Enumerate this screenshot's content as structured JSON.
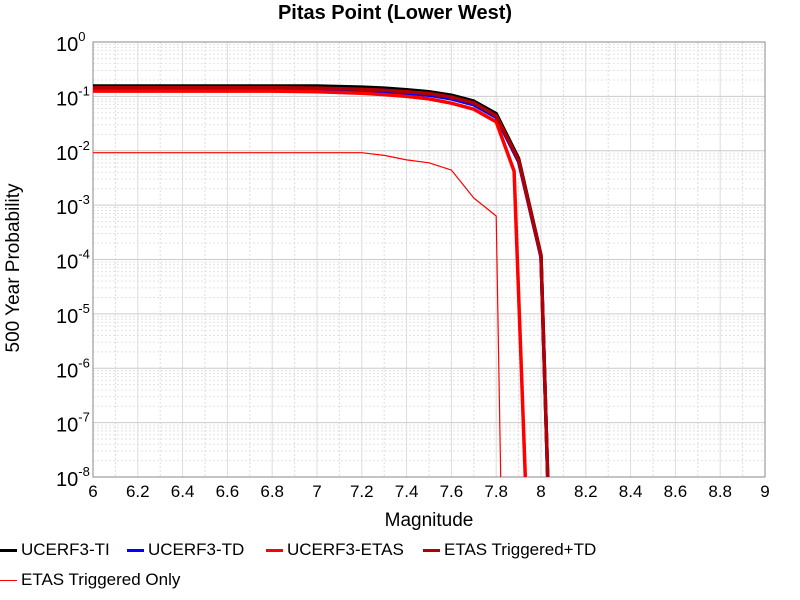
{
  "chart_data": {
    "type": "line",
    "title": "Pitas Point (Lower West)",
    "xlabel": "Magnitude",
    "ylabel": "500 Year Probability",
    "xlim": [
      6,
      9
    ],
    "ylim": [
      1e-08,
      1
    ],
    "yscale": "log",
    "grid": true,
    "legend_position": "bottom",
    "x_ticks": [
      "6",
      "6.2",
      "6.4",
      "6.6",
      "6.8",
      "7",
      "7.2",
      "7.4",
      "7.6",
      "7.8",
      "8",
      "8.2",
      "8.4",
      "8.6",
      "8.8",
      "9"
    ],
    "y_ticks": [
      {
        "base": "10",
        "exp": "0",
        "value": 1
      },
      {
        "base": "10",
        "exp": "-1",
        "value": 0.1
      },
      {
        "base": "10",
        "exp": "-2",
        "value": 0.01
      },
      {
        "base": "10",
        "exp": "-3",
        "value": 0.001
      },
      {
        "base": "10",
        "exp": "-4",
        "value": 0.0001
      },
      {
        "base": "10",
        "exp": "-5",
        "value": 1e-05
      },
      {
        "base": "10",
        "exp": "-6",
        "value": 1e-06
      },
      {
        "base": "10",
        "exp": "-7",
        "value": 1e-07
      },
      {
        "base": "10",
        "exp": "-8",
        "value": 1e-08
      }
    ],
    "series": [
      {
        "name": "UCERF3-TI",
        "color": "#000000",
        "width": 3.5,
        "points": [
          [
            6.0,
            0.155
          ],
          [
            6.2,
            0.155
          ],
          [
            6.4,
            0.155
          ],
          [
            6.6,
            0.155
          ],
          [
            6.8,
            0.155
          ],
          [
            7.0,
            0.155
          ],
          [
            7.2,
            0.148
          ],
          [
            7.3,
            0.142
          ],
          [
            7.4,
            0.132
          ],
          [
            7.5,
            0.122
          ],
          [
            7.6,
            0.105
          ],
          [
            7.7,
            0.082
          ],
          [
            7.8,
            0.048
          ],
          [
            7.9,
            0.0072
          ],
          [
            8.0,
            0.00012
          ],
          [
            8.03,
            1e-08
          ]
        ]
      },
      {
        "name": "UCERF3-TD",
        "color": "#0000ff",
        "width": 3.5,
        "points": [
          [
            6.0,
            0.135
          ],
          [
            6.2,
            0.135
          ],
          [
            6.4,
            0.135
          ],
          [
            6.6,
            0.135
          ],
          [
            6.8,
            0.135
          ],
          [
            7.0,
            0.135
          ],
          [
            7.2,
            0.128
          ],
          [
            7.3,
            0.122
          ],
          [
            7.4,
            0.114
          ],
          [
            7.5,
            0.105
          ],
          [
            7.6,
            0.09
          ],
          [
            7.7,
            0.07
          ],
          [
            7.8,
            0.041
          ],
          [
            7.9,
            0.0063
          ],
          [
            8.0,
            0.00011
          ],
          [
            8.03,
            1e-08
          ]
        ]
      },
      {
        "name": "UCERF3-ETAS",
        "color": "#ff0000",
        "width": 3.5,
        "points": [
          [
            6.0,
            0.125
          ],
          [
            6.2,
            0.125
          ],
          [
            6.4,
            0.125
          ],
          [
            6.6,
            0.125
          ],
          [
            6.8,
            0.125
          ],
          [
            7.0,
            0.122
          ],
          [
            7.2,
            0.114
          ],
          [
            7.3,
            0.108
          ],
          [
            7.4,
            0.1
          ],
          [
            7.5,
            0.09
          ],
          [
            7.6,
            0.075
          ],
          [
            7.7,
            0.058
          ],
          [
            7.8,
            0.034
          ],
          [
            7.88,
            0.0042
          ],
          [
            7.93,
            1e-08
          ]
        ]
      },
      {
        "name": "ETAS Triggered+TD",
        "color": "#b00000",
        "width": 3.5,
        "points": [
          [
            6.0,
            0.145
          ],
          [
            6.2,
            0.145
          ],
          [
            6.4,
            0.145
          ],
          [
            6.6,
            0.145
          ],
          [
            6.8,
            0.145
          ],
          [
            7.0,
            0.142
          ],
          [
            7.2,
            0.135
          ],
          [
            7.3,
            0.13
          ],
          [
            7.4,
            0.122
          ],
          [
            7.5,
            0.113
          ],
          [
            7.6,
            0.097
          ],
          [
            7.7,
            0.076
          ],
          [
            7.8,
            0.044
          ],
          [
            7.9,
            0.0067
          ],
          [
            8.0,
            0.000115
          ],
          [
            8.03,
            1e-08
          ]
        ]
      },
      {
        "name": "ETAS Triggered Only",
        "color": "#ff0000",
        "width": 1.2,
        "points": [
          [
            6.0,
            0.0092
          ],
          [
            6.2,
            0.0092
          ],
          [
            6.4,
            0.0092
          ],
          [
            6.6,
            0.0092
          ],
          [
            6.8,
            0.0092
          ],
          [
            7.0,
            0.0092
          ],
          [
            7.2,
            0.0092
          ],
          [
            7.3,
            0.0082
          ],
          [
            7.4,
            0.0068
          ],
          [
            7.5,
            0.006
          ],
          [
            7.6,
            0.0044
          ],
          [
            7.7,
            0.00135
          ],
          [
            7.8,
            0.00063
          ],
          [
            7.82,
            1e-08
          ]
        ]
      }
    ]
  }
}
